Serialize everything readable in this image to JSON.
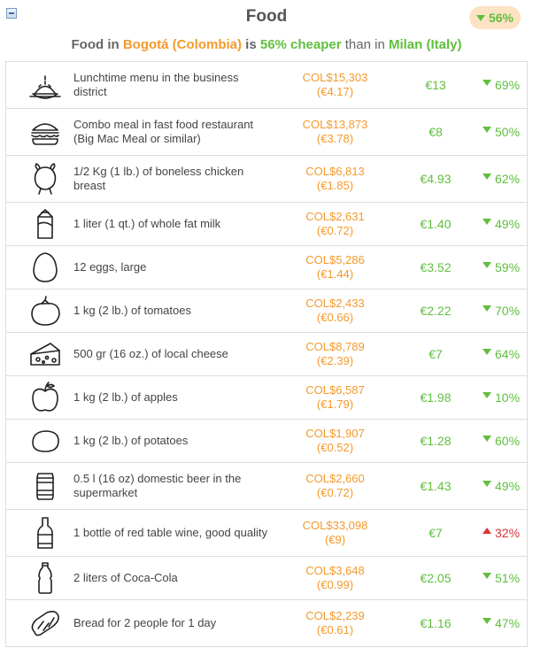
{
  "header": {
    "title": "Food",
    "badge": "56%"
  },
  "subtitle": {
    "p1": "Food in ",
    "city1": "Bogotá (Colombia)",
    "p2": " is ",
    "pct": "56% cheaper",
    "p3": " than in ",
    "city2": "Milan (Italy)"
  },
  "rows": [
    {
      "icon": "lunch-plate-icon",
      "name": "Lunchtime menu in the business district",
      "local": "COL$15,303",
      "local_eur": "(€4.17)",
      "milan": "€13",
      "diff": "69%",
      "dir": "down"
    },
    {
      "icon": "burger-icon",
      "name": "Combo meal in fast food restaurant (Big Mac Meal or similar)",
      "local": "COL$13,873",
      "local_eur": "(€3.78)",
      "milan": "€8",
      "diff": "50%",
      "dir": "down"
    },
    {
      "icon": "chicken-icon",
      "name": "1/2 Kg (1 lb.) of boneless chicken breast",
      "local": "COL$6,813",
      "local_eur": "(€1.85)",
      "milan": "€4.93",
      "diff": "62%",
      "dir": "down"
    },
    {
      "icon": "milk-carton-icon",
      "name": "1 liter (1 qt.) of whole fat milk",
      "local": "COL$2,631",
      "local_eur": "(€0.72)",
      "milan": "€1.40",
      "diff": "49%",
      "dir": "down"
    },
    {
      "icon": "egg-icon",
      "name": "12 eggs, large",
      "local": "COL$5,286",
      "local_eur": "(€1.44)",
      "milan": "€3.52",
      "diff": "59%",
      "dir": "down"
    },
    {
      "icon": "tomato-icon",
      "name": "1 kg (2 lb.) of tomatoes",
      "local": "COL$2,433",
      "local_eur": "(€0.66)",
      "milan": "€2.22",
      "diff": "70%",
      "dir": "down"
    },
    {
      "icon": "cheese-icon",
      "name": "500 gr (16 oz.) of local cheese",
      "local": "COL$8,789",
      "local_eur": "(€2.39)",
      "milan": "€7",
      "diff": "64%",
      "dir": "down"
    },
    {
      "icon": "apple-icon",
      "name": "1 kg (2 lb.) of apples",
      "local": "COL$6,587",
      "local_eur": "(€1.79)",
      "milan": "€1.98",
      "diff": "10%",
      "dir": "down"
    },
    {
      "icon": "potato-icon",
      "name": "1 kg (2 lb.) of potatoes",
      "local": "COL$1,907",
      "local_eur": "(€0.52)",
      "milan": "€1.28",
      "diff": "60%",
      "dir": "down"
    },
    {
      "icon": "beer-can-icon",
      "name": "0.5 l (16 oz) domestic beer in the supermarket",
      "local": "COL$2,660",
      "local_eur": "(€0.72)",
      "milan": "€1.43",
      "diff": "49%",
      "dir": "down"
    },
    {
      "icon": "wine-bottle-icon",
      "name": "1 bottle of red table wine, good quality",
      "local": "COL$33,098",
      "local_eur": "(€9)",
      "milan": "€7",
      "diff": "32%",
      "dir": "up"
    },
    {
      "icon": "soda-bottle-icon",
      "name": "2 liters of Coca-Cola",
      "local": "COL$3,648",
      "local_eur": "(€0.99)",
      "milan": "€2.05",
      "diff": "51%",
      "dir": "down"
    },
    {
      "icon": "bread-icon",
      "name": "Bread for 2 people for 1 day",
      "local": "COL$2,239",
      "local_eur": "(€0.61)",
      "milan": "€1.16",
      "diff": "47%",
      "dir": "down"
    }
  ],
  "colors": {
    "local_price": "#f39a2c",
    "cheaper": "#5fbf3d",
    "more_expensive": "#dd3333",
    "badge_bg": "#fde2c3"
  }
}
